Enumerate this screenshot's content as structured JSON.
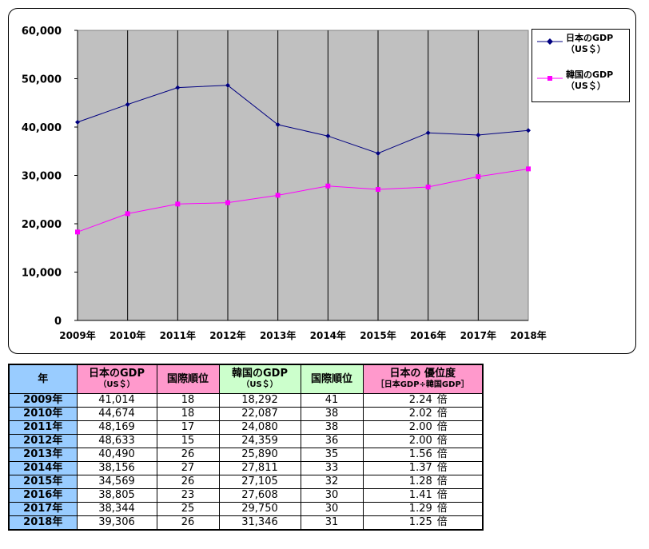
{
  "colors": {
    "plot_bg": "#c0c0c0",
    "japan": "#000080",
    "korea": "#ff00ff",
    "year_header": "#99ccff",
    "japan_header": "#ff99cc",
    "korea_header": "#ccffcc"
  },
  "chart_data": {
    "type": "line",
    "categories": [
      "2009年",
      "2010年",
      "2011年",
      "2012年",
      "2013年",
      "2014年",
      "2015年",
      "2016年",
      "2017年",
      "2018年"
    ],
    "ylim": [
      0,
      60000
    ],
    "yticks": [
      "0",
      "10,000",
      "20,000",
      "30,000",
      "40,000",
      "50,000",
      "60,000"
    ],
    "grid": "vertical",
    "legend_position": "right",
    "series": [
      {
        "name": "日本のGDP",
        "name_unit": "（US＄）",
        "marker": "diamond",
        "values": [
          41014,
          44674,
          48169,
          48633,
          40490,
          38156,
          34569,
          38805,
          38344,
          39306
        ]
      },
      {
        "name": "韓国のGDP",
        "name_unit": "（US＄）",
        "marker": "square",
        "values": [
          18292,
          22087,
          24080,
          24359,
          25890,
          27811,
          27105,
          27608,
          29750,
          31346
        ]
      }
    ]
  },
  "table": {
    "headers": {
      "year": "年",
      "japan_gdp": "日本のGDP",
      "japan_gdp_unit": "（US＄）",
      "japan_rank": "国際順位",
      "korea_gdp": "韓国のGDP",
      "korea_gdp_unit": "（US＄）",
      "korea_rank": "国際順位",
      "ratio": "日本の 優位度",
      "ratio_sub": "［日本GDP÷韓国GDP］"
    },
    "ratio_unit": "倍",
    "rows": [
      {
        "year": "2009年",
        "japan_gdp": "41,014",
        "japan_rank": "18",
        "korea_gdp": "18,292",
        "korea_rank": "41",
        "ratio": "2.24"
      },
      {
        "year": "2010年",
        "japan_gdp": "44,674",
        "japan_rank": "18",
        "korea_gdp": "22,087",
        "korea_rank": "38",
        "ratio": "2.02"
      },
      {
        "year": "2011年",
        "japan_gdp": "48,169",
        "japan_rank": "17",
        "korea_gdp": "24,080",
        "korea_rank": "38",
        "ratio": "2.00"
      },
      {
        "year": "2012年",
        "japan_gdp": "48,633",
        "japan_rank": "15",
        "korea_gdp": "24,359",
        "korea_rank": "36",
        "ratio": "2.00"
      },
      {
        "year": "2013年",
        "japan_gdp": "40,490",
        "japan_rank": "26",
        "korea_gdp": "25,890",
        "korea_rank": "35",
        "ratio": "1.56"
      },
      {
        "year": "2014年",
        "japan_gdp": "38,156",
        "japan_rank": "27",
        "korea_gdp": "27,811",
        "korea_rank": "33",
        "ratio": "1.37"
      },
      {
        "year": "2015年",
        "japan_gdp": "34,569",
        "japan_rank": "26",
        "korea_gdp": "27,105",
        "korea_rank": "32",
        "ratio": "1.28"
      },
      {
        "year": "2016年",
        "japan_gdp": "38,805",
        "japan_rank": "23",
        "korea_gdp": "27,608",
        "korea_rank": "30",
        "ratio": "1.41"
      },
      {
        "year": "2017年",
        "japan_gdp": "38,344",
        "japan_rank": "25",
        "korea_gdp": "29,750",
        "korea_rank": "30",
        "ratio": "1.29"
      },
      {
        "year": "2018年",
        "japan_gdp": "39,306",
        "japan_rank": "26",
        "korea_gdp": "31,346",
        "korea_rank": "31",
        "ratio": "1.25"
      }
    ]
  }
}
